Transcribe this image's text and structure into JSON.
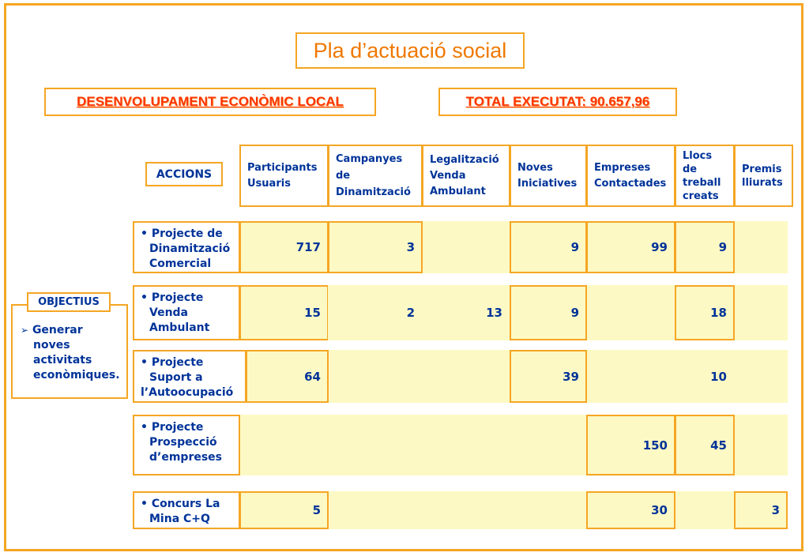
{
  "title": "Pla d’actuació social",
  "banner_left": "DESENVOLUPAMENT ECONÒMIC LOCAL",
  "banner_right": "TOTAL EXECUTAT: 90.657,96",
  "accions_label": "ACCIONS",
  "objectius_label": "OBJECTIUS",
  "objectius_text": [
    "Generar",
    "noves",
    "activitats",
    "econòmiques."
  ],
  "columns": [
    [
      "Participants",
      "Usuaris"
    ],
    [
      "Campanyes",
      "de",
      "Dinamització"
    ],
    [
      "Legalització",
      "Venda",
      "Ambulant"
    ],
    [
      "Noves",
      "Iniciatives"
    ],
    [
      "Empreses",
      "Contactades"
    ],
    [
      "Llocs",
      "de",
      "treball",
      "creats"
    ],
    [
      "Premis",
      "lliurats"
    ]
  ],
  "rows": [
    {
      "name": [
        "Projecte de",
        "Dinamització",
        "Comercial"
      ],
      "values": [
        "717",
        "3",
        "",
        "9",
        "99",
        "9",
        ""
      ]
    },
    {
      "name": [
        "Projecte",
        "Venda",
        "Ambulant"
      ],
      "values": [
        "15",
        "2",
        "13",
        "9",
        "",
        "18",
        ""
      ]
    },
    {
      "name": [
        "Projecte",
        "Suport a",
        "l’Autoocupació"
      ],
      "values": [
        "64",
        "",
        "",
        "39",
        "",
        "10",
        ""
      ]
    },
    {
      "name": [
        "Projecte",
        "Prospecció",
        "d’empreses"
      ],
      "values": [
        "",
        "",
        "",
        "",
        "150",
        "45",
        ""
      ]
    },
    {
      "name": [
        "Concurs La",
        "Mina C+Q"
      ],
      "values": [
        "5",
        "",
        "",
        "",
        "30",
        "",
        "3"
      ]
    }
  ]
}
